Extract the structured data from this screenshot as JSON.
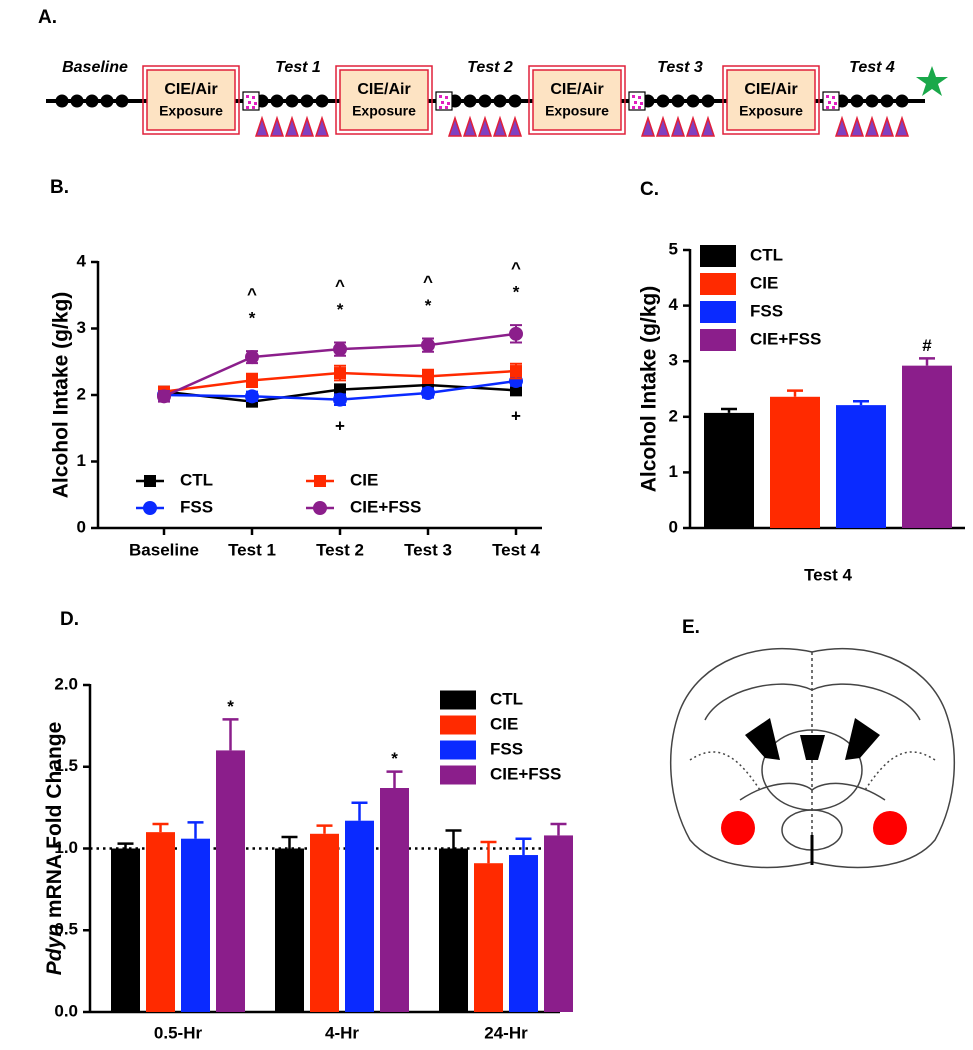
{
  "panel_labels": [
    "A.",
    "B.",
    "C.",
    "D.",
    "E."
  ],
  "timeline": {
    "phases": [
      "Baseline",
      "Test 1",
      "Test 2",
      "Test 3",
      "Test 4"
    ],
    "box_title": "CIE/Air",
    "box_subtitle": "Exposure"
  },
  "chart_data": [
    {
      "type": "line",
      "ylabel": "Alcohol Intake (g/kg)",
      "categories": [
        "Baseline",
        "Test 1",
        "Test 2",
        "Test 3",
        "Test 4"
      ],
      "ylim": [
        0,
        4
      ],
      "yticks": [
        0,
        1,
        2,
        3,
        4
      ],
      "series": [
        {
          "name": "CTL",
          "color": "#000000",
          "marker": "square",
          "values": [
            2.05,
            1.9,
            2.08,
            2.15,
            2.07
          ],
          "errors": [
            0.07,
            0.07,
            0.08,
            0.08,
            0.07
          ]
        },
        {
          "name": "FSS",
          "color": "#0a2aff",
          "marker": "circle",
          "values": [
            2.0,
            1.98,
            1.93,
            2.03,
            2.21
          ],
          "errors": [
            0.07,
            0.07,
            0.08,
            0.07,
            0.07
          ]
        },
        {
          "name": "CIE",
          "color": "#ff2a00",
          "marker": "square",
          "values": [
            2.05,
            2.22,
            2.33,
            2.28,
            2.36
          ],
          "errors": [
            0.07,
            0.1,
            0.11,
            0.1,
            0.11
          ]
        },
        {
          "name": "CIE+FSS",
          "color": "#8b1e8b",
          "marker": "circle",
          "values": [
            1.98,
            2.57,
            2.69,
            2.75,
            2.92
          ],
          "errors": [
            0.08,
            0.09,
            0.1,
            0.1,
            0.13
          ]
        }
      ],
      "annotations": [
        {
          "label": "*",
          "x": "Test 1",
          "position": "above"
        },
        {
          "label": "^",
          "x": "Test 1",
          "position": "above"
        },
        {
          "label": "*",
          "x": "Test 2",
          "position": "above"
        },
        {
          "label": "^",
          "x": "Test 2",
          "position": "above"
        },
        {
          "label": "+",
          "x": "Test 2",
          "position": "below"
        },
        {
          "label": "*",
          "x": "Test 3",
          "position": "above"
        },
        {
          "label": "^",
          "x": "Test 3",
          "position": "above"
        },
        {
          "label": "*",
          "x": "Test 4",
          "position": "above"
        },
        {
          "label": "^",
          "x": "Test 4",
          "position": "above"
        },
        {
          "label": "+",
          "x": "Test 4",
          "position": "below"
        }
      ]
    },
    {
      "type": "bar",
      "ylabel": "Alcohol Intake (g/kg)",
      "categories": [
        "Test 4"
      ],
      "ylim": [
        0,
        5
      ],
      "yticks": [
        0,
        1,
        2,
        3,
        4,
        5
      ],
      "series": [
        {
          "name": "CTL",
          "color": "#000000",
          "values": [
            2.07
          ],
          "errors": [
            0.07
          ]
        },
        {
          "name": "CIE",
          "color": "#ff2a00",
          "values": [
            2.36
          ],
          "errors": [
            0.11
          ]
        },
        {
          "name": "FSS",
          "color": "#0a2aff",
          "values": [
            2.21
          ],
          "errors": [
            0.07
          ]
        },
        {
          "name": "CIE+FSS",
          "color": "#8b1e8b",
          "values": [
            2.92
          ],
          "errors": [
            0.13
          ]
        }
      ],
      "annotations": [
        {
          "label": "#",
          "x": "Test 4",
          "series": "CIE+FSS"
        }
      ]
    },
    {
      "type": "bar",
      "ylabel_italic": "Pdyn",
      "ylabel": " mRNA Fold Change",
      "categories": [
        "0.5-Hr",
        "4-Hr",
        "24-Hr"
      ],
      "ylim": [
        0,
        2
      ],
      "yticks": [
        {
          "value": 0,
          "label": "0.0"
        },
        0.5,
        {
          "value": 1,
          "label": "1.0"
        },
        1.5,
        {
          "value": 2,
          "label": "2.0"
        }
      ],
      "reference_line": 1,
      "series": [
        {
          "name": "CTL",
          "color": "#000000",
          "values": [
            1.0,
            1.0,
            1.0
          ],
          "errors": [
            0.03,
            0.07,
            0.11
          ]
        },
        {
          "name": "CIE",
          "color": "#ff2a00",
          "values": [
            1.1,
            1.09,
            0.91
          ],
          "errors": [
            0.05,
            0.05,
            0.13
          ]
        },
        {
          "name": "FSS",
          "color": "#0a2aff",
          "values": [
            1.06,
            1.17,
            0.96
          ],
          "errors": [
            0.1,
            0.11,
            0.1
          ]
        },
        {
          "name": "CIE+FSS",
          "color": "#8b1e8b",
          "values": [
            1.6,
            1.37,
            1.08
          ],
          "errors": [
            0.19,
            0.1,
            0.07
          ]
        }
      ],
      "annotations": [
        {
          "label": "*",
          "x": "0.5-Hr",
          "series": "CIE+FSS"
        },
        {
          "label": "*",
          "x": "4-Hr",
          "series": "CIE+FSS"
        }
      ]
    }
  ]
}
